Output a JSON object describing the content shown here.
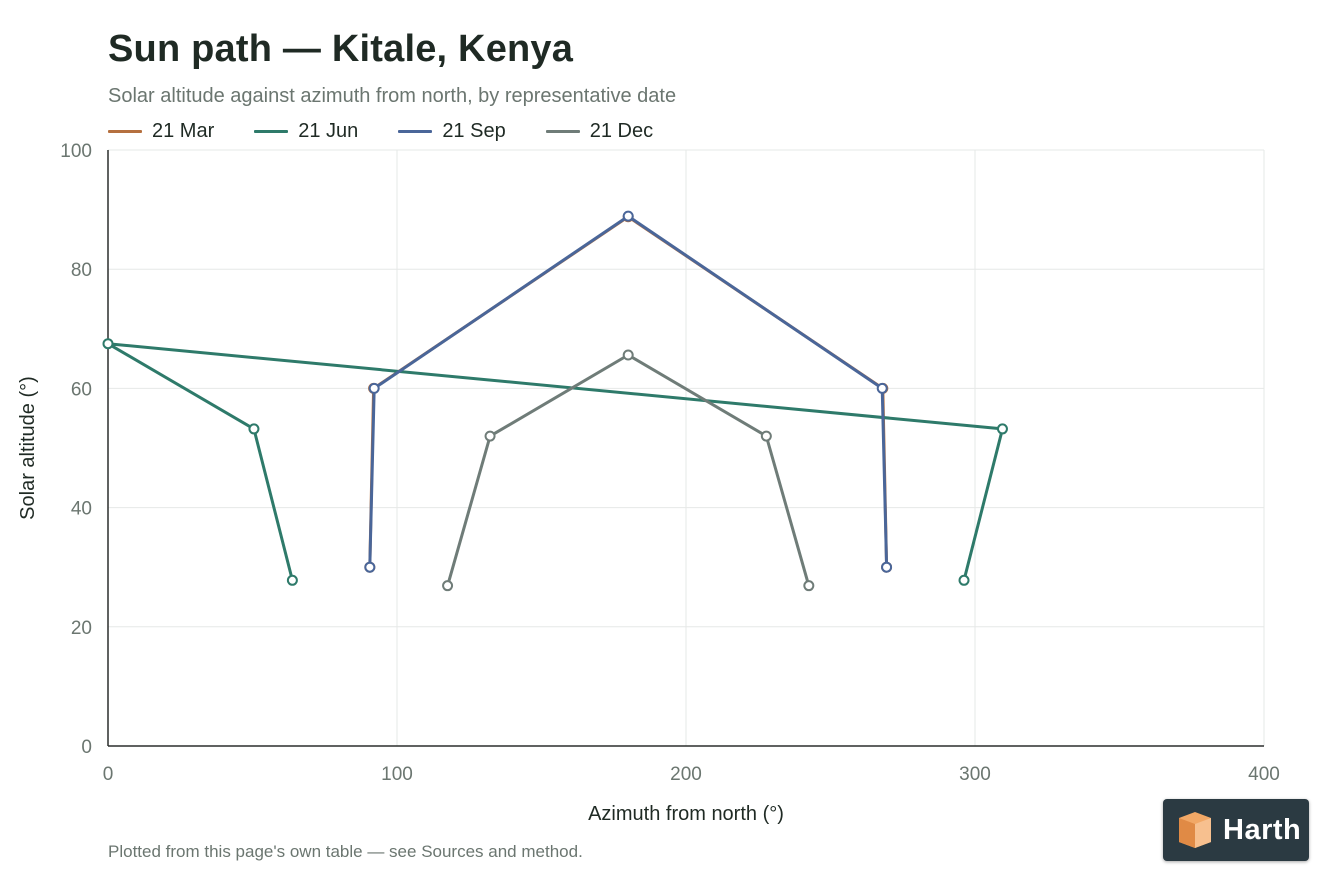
{
  "title": "Sun path — Kitale, Kenya",
  "subtitle": "Solar altitude against azimuth from north, by representative date",
  "footnote": "Plotted from this page's own table — see Sources and method.",
  "brand": {
    "name": "Harth",
    "badge_color": "#2b3a42",
    "mark_color": "#f2a866"
  },
  "chart_data": {
    "type": "line",
    "xlabel": "Azimuth from north (°)",
    "ylabel": "Solar altitude (°)",
    "xlim": [
      0,
      400
    ],
    "ylim": [
      0,
      100
    ],
    "xticks": [
      0,
      100,
      200,
      300,
      400
    ],
    "yticks": [
      0,
      20,
      40,
      60,
      80,
      100
    ],
    "grid": true,
    "legend_position": "top-left",
    "series": [
      {
        "name": "21 Mar",
        "color": "#b5703f",
        "points": [
          [
            90.6,
            30.0
          ],
          [
            91.9,
            60.0
          ],
          [
            180.0,
            88.8
          ],
          [
            268.1,
            60.0
          ],
          [
            269.4,
            30.0
          ]
        ]
      },
      {
        "name": "21 Jun",
        "color": "#2e7a6a",
        "points": [
          [
            63.8,
            27.8
          ],
          [
            50.5,
            53.2
          ],
          [
            0.0,
            67.5
          ],
          [
            309.5,
            53.2
          ],
          [
            296.2,
            27.8
          ]
        ]
      },
      {
        "name": "21 Sep",
        "color": "#4a6699",
        "points": [
          [
            90.6,
            30.0
          ],
          [
            92.1,
            60.0
          ],
          [
            180.0,
            88.9
          ],
          [
            267.9,
            60.0
          ],
          [
            269.4,
            30.0
          ]
        ]
      },
      {
        "name": "21 Dec",
        "color": "#6f7c78",
        "points": [
          [
            117.5,
            26.9
          ],
          [
            132.2,
            52.0
          ],
          [
            180.0,
            65.6
          ],
          [
            227.8,
            52.0
          ],
          [
            242.5,
            26.9
          ]
        ]
      }
    ]
  }
}
